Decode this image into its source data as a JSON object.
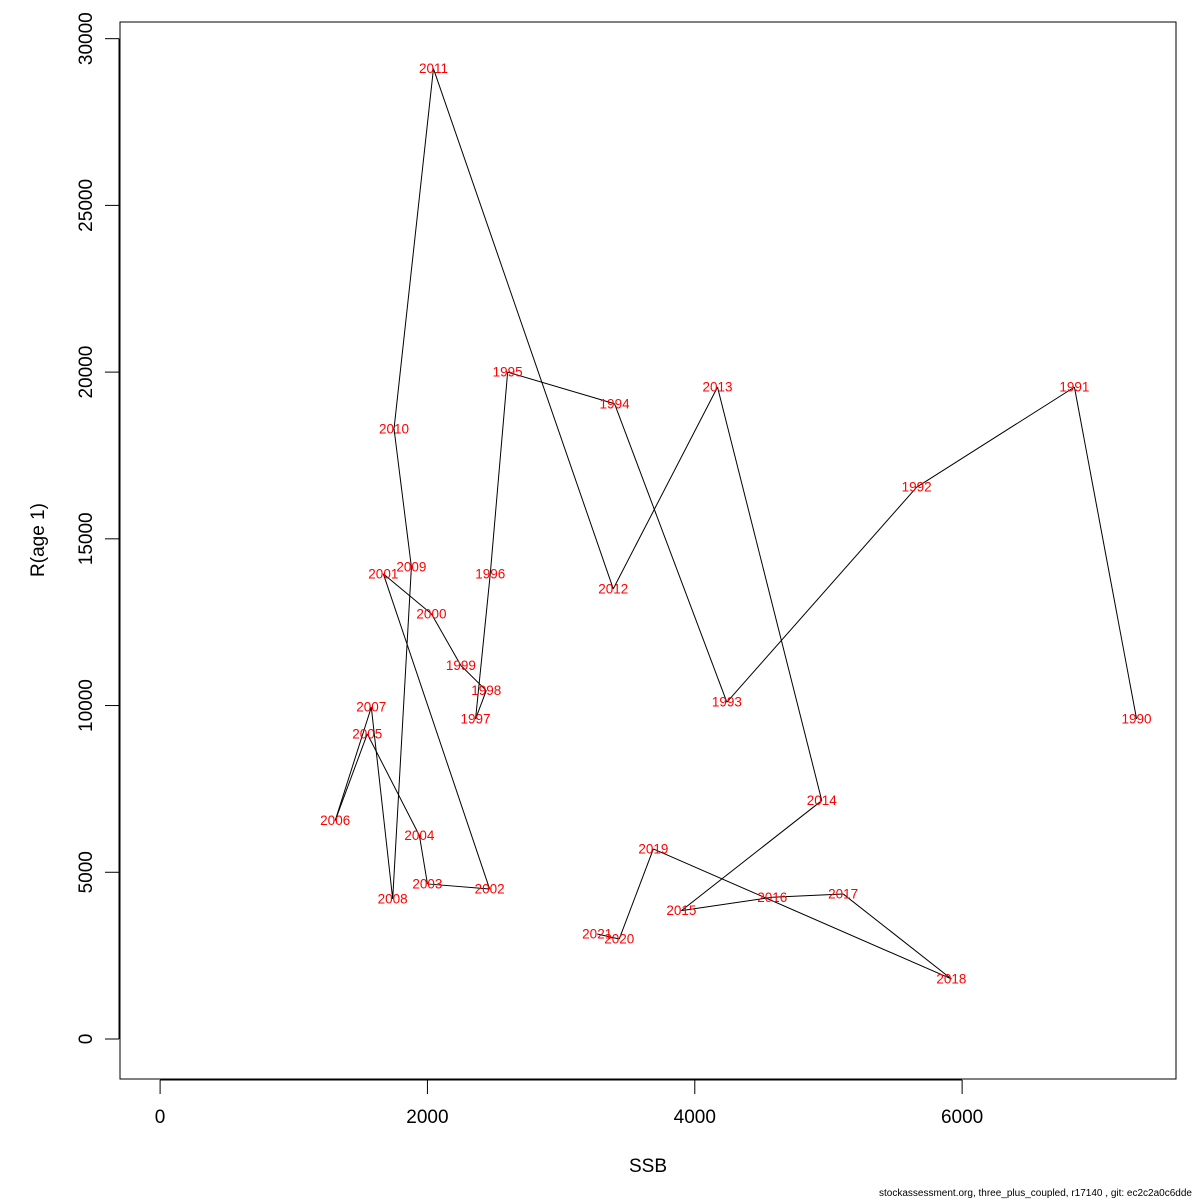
{
  "chart_data": {
    "type": "line",
    "xlabel": "SSB",
    "ylabel": "R(age 1)",
    "xlim": [
      -300,
      7600
    ],
    "ylim": [
      -1200,
      30500
    ],
    "x_ticks": [
      0,
      2000,
      4000,
      6000
    ],
    "x_tick_labels": [
      "0",
      "2000",
      "4000",
      "6000"
    ],
    "y_ticks": [
      0,
      5000,
      10000,
      15000,
      20000,
      25000,
      30000
    ],
    "y_tick_labels": [
      "0",
      "5000",
      "10000",
      "15000",
      "20000",
      "25000",
      "30000"
    ],
    "grid": false,
    "line_color": "#000000",
    "label_color": "#ff0000",
    "points": [
      {
        "label": "1990",
        "x": 7305,
        "y": 9600
      },
      {
        "label": "1991",
        "x": 6840,
        "y": 19550
      },
      {
        "label": "1992",
        "x": 5660,
        "y": 16550
      },
      {
        "label": "1993",
        "x": 4240,
        "y": 10100
      },
      {
        "label": "1994",
        "x": 3400,
        "y": 19050
      },
      {
        "label": "1995",
        "x": 2600,
        "y": 20000
      },
      {
        "label": "1996",
        "x": 2470,
        "y": 13950
      },
      {
        "label": "1997",
        "x": 2360,
        "y": 9600
      },
      {
        "label": "1998",
        "x": 2440,
        "y": 10450
      },
      {
        "label": "1999",
        "x": 2250,
        "y": 11200
      },
      {
        "label": "2000",
        "x": 2030,
        "y": 12750
      },
      {
        "label": "2001",
        "x": 1670,
        "y": 13950
      },
      {
        "label": "2002",
        "x": 2465,
        "y": 4500
      },
      {
        "label": "2003",
        "x": 2000,
        "y": 4650
      },
      {
        "label": "2004",
        "x": 1940,
        "y": 6100
      },
      {
        "label": "2005",
        "x": 1550,
        "y": 9150
      },
      {
        "label": "2006",
        "x": 1310,
        "y": 6550
      },
      {
        "label": "2007",
        "x": 1580,
        "y": 9950
      },
      {
        "label": "2008",
        "x": 1740,
        "y": 4200
      },
      {
        "label": "2009",
        "x": 1880,
        "y": 14150
      },
      {
        "label": "2010",
        "x": 1750,
        "y": 18300
      },
      {
        "label": "2011",
        "x": 2045,
        "y": 29100
      },
      {
        "label": "2012",
        "x": 3390,
        "y": 13500
      },
      {
        "label": "2013",
        "x": 4170,
        "y": 19550
      },
      {
        "label": "2014",
        "x": 4950,
        "y": 7150
      },
      {
        "label": "2015",
        "x": 3900,
        "y": 3850
      },
      {
        "label": "2016",
        "x": 4580,
        "y": 4250
      },
      {
        "label": "2017",
        "x": 5110,
        "y": 4350
      },
      {
        "label": "2018",
        "x": 5920,
        "y": 1800
      },
      {
        "label": "2019",
        "x": 3690,
        "y": 5700
      },
      {
        "label": "2020",
        "x": 3435,
        "y": 3000
      },
      {
        "label": "2021",
        "x": 3270,
        "y": 3150
      }
    ]
  },
  "footer": {
    "text": "stockassessment.org, three_plus_coupled, r17140 , git: ec2c2a0c6dde"
  }
}
